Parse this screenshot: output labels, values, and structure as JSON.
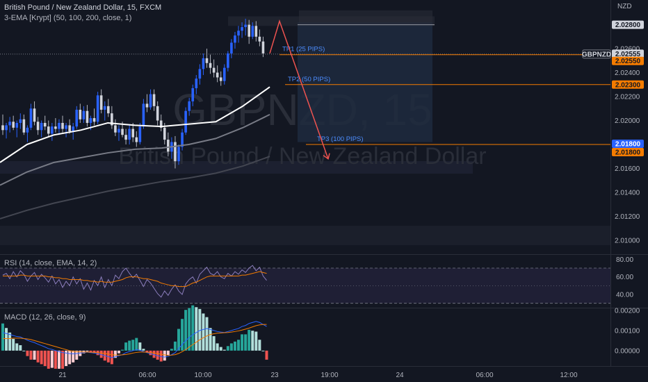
{
  "header": {
    "symbol_title": "British Pound / New Zealand Dollar, 15, FXCM",
    "indicator": "3-EMA [Krypt] (50, 100, 200, close, 1)"
  },
  "watermark": {
    "line1": "GBPNZD, 15",
    "line2": "British Pound / New Zealand Dollar"
  },
  "axis": {
    "currency": "NZD",
    "price_ticks": [
      "2.02800",
      "2.02600",
      "2.02400",
      "2.02200",
      "2.02000",
      "2.01800",
      "2.01600",
      "2.01400",
      "2.01200",
      "2.01000"
    ],
    "price_tick_values": [
      2.028,
      2.026,
      2.024,
      2.022,
      2.02,
      2.018,
      2.016,
      2.014,
      2.012,
      2.01
    ],
    "time_ticks": [
      "21",
      "06:00",
      "10:00",
      "23",
      "19:00",
      "24",
      "06:00",
      "12:00"
    ]
  },
  "badges": [
    {
      "text": "2.02800",
      "value": 2.028,
      "bg": "#d1d4dc",
      "fg": "#131722"
    },
    {
      "text": "GBPNZD",
      "value": 2.02555,
      "bg": "#131722",
      "fg": "#d1d4dc",
      "outlined": true
    },
    {
      "text": "2.02555",
      "value": 2.02555,
      "bg": "#d1d4dc",
      "fg": "#131722"
    },
    {
      "text": "2.02550",
      "value": 2.0255,
      "bg": "#f57c00",
      "fg": "#131722"
    },
    {
      "text": "2.02300",
      "value": 2.023,
      "bg": "#f57c00",
      "fg": "#131722"
    },
    {
      "text": "2.01800",
      "value": 2.018,
      "bg": "#2962ff",
      "fg": "#ffffff"
    },
    {
      "text": "2.01800",
      "value": 2.018,
      "bg": "#f57c00",
      "fg": "#131722"
    }
  ],
  "targets": [
    {
      "label": "TP1 (25 PIPS)",
      "price": 2.0255
    },
    {
      "label": "TP2 (50 PIPS)",
      "price": 2.023
    },
    {
      "label": "TP3 (100 PIPS)",
      "price": 2.018
    }
  ],
  "rsi": {
    "label": "RSI (14, close, EMA, 14, 2)",
    "ticks": [
      "80.00",
      "60.00",
      "40.00"
    ],
    "tick_values": [
      80,
      60,
      40
    ],
    "bands": [
      70,
      30
    ],
    "range": [
      25,
      85
    ],
    "rsi_values": [
      62,
      64,
      58,
      66,
      60,
      67,
      63,
      55,
      61,
      65,
      57,
      63,
      59,
      54,
      61,
      52,
      57,
      48,
      55,
      50,
      60,
      52,
      58,
      46,
      53,
      45,
      56,
      50,
      60,
      48,
      57,
      50,
      62,
      58,
      66,
      70,
      64,
      59,
      63,
      56,
      49,
      57,
      53,
      47,
      41,
      37,
      44,
      39,
      46,
      51,
      44,
      40,
      52,
      57,
      60,
      53,
      63,
      67,
      71,
      64,
      62,
      66,
      60,
      58,
      64,
      61,
      66,
      63,
      68,
      65,
      70,
      73,
      67,
      71,
      61,
      56
    ],
    "ema_values": [
      61,
      61,
      61,
      61,
      61,
      62,
      62,
      61,
      61,
      61,
      61,
      61,
      61,
      60,
      60,
      59,
      59,
      58,
      58,
      57,
      57,
      57,
      57,
      56,
      56,
      55,
      55,
      54,
      55,
      54,
      54,
      54,
      55,
      56,
      57,
      59,
      60,
      60,
      60,
      59,
      58,
      58,
      57,
      56,
      55,
      53,
      52,
      51,
      50,
      50,
      49,
      49,
      49,
      51,
      53,
      54,
      56,
      58,
      60,
      61,
      61,
      61,
      61,
      61,
      61,
      61,
      61,
      61,
      62,
      62,
      63,
      64,
      65,
      66,
      65,
      64
    ],
    "colors": {
      "rsi": "#8c7ebd",
      "ema": "#f57c00",
      "band": "#7e57c2"
    }
  },
  "macd": {
    "label": "MACD (12, 26, close, 9)",
    "ticks": [
      "0.00200",
      "0.00100",
      "0.00000"
    ],
    "tick_values": [
      0.002,
      0.001,
      0
    ],
    "range": [
      -0.0008,
      0.0021
    ],
    "macd_values": [
      0.0009,
      0.00085,
      0.0008,
      0.00075,
      0.0007,
      0.00068,
      0.0006,
      0.00052,
      0.00045,
      0.0004,
      0.00032,
      0.00025,
      0.00018,
      0.0001,
      6e-05,
      0,
      -5e-05,
      -0.0001,
      -0.00012,
      -0.00015,
      -0.00016,
      -0.00015,
      -0.00012,
      -0.0001,
      -8e-05,
      -0.0001,
      -0.00012,
      -0.00015,
      -0.0002,
      -0.00025,
      -0.0003,
      -0.00035,
      -0.0003,
      -0.00025,
      -0.0002,
      -0.0001,
      -5e-05,
      0,
      5e-05,
      2e-05,
      -5e-05,
      -0.0001,
      -0.00015,
      -0.0002,
      -0.00025,
      -0.0003,
      -0.00032,
      -0.00028,
      -0.0002,
      -0.0001,
      0.0001,
      0.0003,
      0.0005,
      0.00065,
      0.0008,
      0.0009,
      0.001,
      0.00105,
      0.0011,
      0.00105,
      0.001,
      0.00095,
      0.00092,
      0.0009,
      0.00095,
      0.001,
      0.00105,
      0.0011,
      0.0012,
      0.00125,
      0.00135,
      0.0014,
      0.00145,
      0.0014,
      0.0013,
      0.0012
    ],
    "signal_values": [
      0.0006,
      0.0006,
      0.0006,
      0.00062,
      0.00062,
      0.00062,
      0.0006,
      0.00058,
      0.00055,
      0.0005,
      0.00045,
      0.0004,
      0.00035,
      0.0003,
      0.00025,
      0.0002,
      0.00015,
      0.0001,
      5e-05,
      0,
      -3e-05,
      -5e-05,
      -6e-05,
      -7e-05,
      -7e-05,
      -8e-05,
      -9e-05,
      -0.0001,
      -0.00012,
      -0.00014,
      -0.00017,
      -0.0002,
      -0.00022,
      -0.00022,
      -0.00021,
      -0.00019,
      -0.00016,
      -0.00012,
      -9e-05,
      -7e-05,
      -7e-05,
      -8e-05,
      -0.0001,
      -0.00012,
      -0.00015,
      -0.00018,
      -0.00021,
      -0.00023,
      -0.00022,
      -0.0002,
      -0.00014,
      -5e-05,
      5e-05,
      0.00018,
      0.0003,
      0.00042,
      0.00054,
      0.00064,
      0.00073,
      0.0008,
      0.00084,
      0.00087,
      0.00088,
      0.00089,
      0.0009,
      0.00092,
      0.00095,
      0.00098,
      0.00102,
      0.00107,
      0.00112,
      0.00118,
      0.00124,
      0.00128,
      0.0013,
      0.0013
    ],
    "colors": {
      "macd": "#2962ff",
      "signal": "#f57c00",
      "pos_strong": "#26a69a",
      "pos_weak": "#b2dfdb",
      "neg_strong": "#ef5350",
      "neg_weak": "#ffcdd2"
    }
  },
  "chart_data": {
    "type": "candlestick",
    "title": "British Pound / New Zealand Dollar, 15, FXCM",
    "ylabel": "NZD",
    "ylim": [
      2.0093,
      2.0296
    ],
    "candles": [
      [
        2.0196,
        2.0205,
        2.0188,
        2.0192
      ],
      [
        2.0192,
        2.0198,
        2.0185,
        2.0196
      ],
      [
        2.0196,
        2.0203,
        2.019,
        2.0199
      ],
      [
        2.0199,
        2.0204,
        2.0192,
        2.0194
      ],
      [
        2.0194,
        2.02,
        2.0186,
        2.0198
      ],
      [
        2.0198,
        2.0206,
        2.0193,
        2.0201
      ],
      [
        2.0201,
        2.0205,
        2.0188,
        2.019
      ],
      [
        2.019,
        2.0196,
        2.0182,
        2.0194
      ],
      [
        2.0194,
        2.0214,
        2.0192,
        2.021
      ],
      [
        2.021,
        2.0216,
        2.0196,
        2.0199
      ],
      [
        2.0199,
        2.0203,
        2.0188,
        2.0192
      ],
      [
        2.0192,
        2.02,
        2.0186,
        2.0198
      ],
      [
        2.0198,
        2.0204,
        2.0192,
        2.0195
      ],
      [
        2.0195,
        2.02,
        2.0186,
        2.0189
      ],
      [
        2.0189,
        2.0198,
        2.0183,
        2.0195
      ],
      [
        2.0195,
        2.0202,
        2.019,
        2.0193
      ],
      [
        2.0193,
        2.0201,
        2.0188,
        2.0198
      ],
      [
        2.0198,
        2.0204,
        2.019,
        2.0193
      ],
      [
        2.0193,
        2.0198,
        2.0186,
        2.0196
      ],
      [
        2.0196,
        2.0201,
        2.0189,
        2.0191
      ],
      [
        2.0191,
        2.0198,
        2.0184,
        2.0195
      ],
      [
        2.0195,
        2.0212,
        2.0193,
        2.0209
      ],
      [
        2.0209,
        2.0214,
        2.0198,
        2.0201
      ],
      [
        2.0201,
        2.0212,
        2.0198,
        2.0208
      ],
      [
        2.0208,
        2.0213,
        2.0195,
        2.0198
      ],
      [
        2.0198,
        2.0204,
        2.0192,
        2.0202
      ],
      [
        2.0202,
        2.021,
        2.0196,
        2.0199
      ],
      [
        2.0199,
        2.0224,
        2.0197,
        2.0221
      ],
      [
        2.0221,
        2.0226,
        2.0206,
        2.0209
      ],
      [
        2.0209,
        2.0216,
        2.02,
        2.0212
      ],
      [
        2.0212,
        2.0218,
        2.0203,
        2.0206
      ],
      [
        2.0206,
        2.0212,
        2.0193,
        2.0196
      ],
      [
        2.0196,
        2.0201,
        2.0187,
        2.019
      ],
      [
        2.019,
        2.0196,
        2.0183,
        2.0193
      ],
      [
        2.0193,
        2.0199,
        2.0186,
        2.0188
      ],
      [
        2.0188,
        2.0193,
        2.018,
        2.0184
      ],
      [
        2.0184,
        2.0197,
        2.018,
        2.0193
      ],
      [
        2.0193,
        2.0198,
        2.0182,
        2.0186
      ],
      [
        2.0186,
        2.0191,
        2.0178,
        2.0182
      ],
      [
        2.0182,
        2.0198,
        2.018,
        2.0195
      ],
      [
        2.0195,
        2.0218,
        2.0193,
        2.0214
      ],
      [
        2.0214,
        2.0222,
        2.0207,
        2.0211
      ],
      [
        2.0211,
        2.0226,
        2.0209,
        2.0222
      ],
      [
        2.0222,
        2.0226,
        2.0208,
        2.0212
      ],
      [
        2.0212,
        2.0216,
        2.0196,
        2.02
      ],
      [
        2.02,
        2.0205,
        2.0191,
        2.0194
      ],
      [
        2.0194,
        2.0198,
        2.018,
        2.0184
      ],
      [
        2.0184,
        2.019,
        2.017,
        2.0174
      ],
      [
        2.0174,
        2.0186,
        2.0168,
        2.0182
      ],
      [
        2.0182,
        2.0187,
        2.016,
        2.0166
      ],
      [
        2.0166,
        2.018,
        2.0163,
        2.0178
      ],
      [
        2.0178,
        2.0193,
        2.0175,
        2.019
      ],
      [
        2.019,
        2.0211,
        2.0188,
        2.0208
      ],
      [
        2.0208,
        2.0219,
        2.0204,
        2.0216
      ],
      [
        2.0216,
        2.023,
        2.0212,
        2.0227
      ],
      [
        2.0227,
        2.0238,
        2.0222,
        2.0235
      ],
      [
        2.0235,
        2.0247,
        2.023,
        2.0243
      ],
      [
        2.0243,
        2.0256,
        2.0238,
        2.0252
      ],
      [
        2.0252,
        2.026,
        2.0244,
        2.0248
      ],
      [
        2.0248,
        2.0255,
        2.0239,
        2.0244
      ],
      [
        2.0244,
        2.0251,
        2.0236,
        2.024
      ],
      [
        2.024,
        2.0246,
        2.0232,
        2.0236
      ],
      [
        2.0236,
        2.0241,
        2.0229,
        2.0233
      ],
      [
        2.0233,
        2.0247,
        2.023,
        2.0244
      ],
      [
        2.0244,
        2.0258,
        2.0241,
        2.0256
      ],
      [
        2.0256,
        2.0268,
        2.0252,
        2.0265
      ],
      [
        2.0265,
        2.0274,
        2.026,
        2.0271
      ],
      [
        2.0271,
        2.0279,
        2.0265,
        2.0275
      ],
      [
        2.0275,
        2.0282,
        2.0269,
        2.0278
      ],
      [
        2.0278,
        2.0285,
        2.0271,
        2.028
      ],
      [
        2.028,
        2.0284,
        2.0264,
        2.027
      ],
      [
        2.027,
        2.0282,
        2.0268,
        2.0279
      ],
      [
        2.0279,
        2.0283,
        2.0266,
        2.027
      ],
      [
        2.027,
        2.0276,
        2.0262,
        2.0266
      ],
      [
        2.0266,
        2.027,
        2.0253,
        2.0256
      ]
    ],
    "ema_series": [
      {
        "name": "EMA 50",
        "color": "#ffffff",
        "values": [
          2.0165,
          2.018,
          2.0188,
          2.0192,
          2.0198,
          2.0196,
          2.0195,
          2.0197,
          2.0199,
          2.0212,
          2.0228
        ]
      },
      {
        "name": "EMA 100",
        "color": "#787b86",
        "values": [
          2.0146,
          2.0157,
          2.0165,
          2.0169,
          2.0173,
          2.0176,
          2.0177,
          2.018,
          2.0185,
          2.0194,
          2.0205
        ]
      },
      {
        "name": "EMA 200",
        "color": "#434651",
        "values": [
          2.0118,
          2.0125,
          2.0131,
          2.0136,
          2.0141,
          2.0145,
          2.0149,
          2.0152,
          2.0156,
          2.0162,
          2.017
        ]
      }
    ],
    "projection": [
      {
        "t": "start",
        "price": 2.0256
      },
      {
        "t": "peak",
        "price": 2.0283
      },
      {
        "t": "end",
        "price": 2.0168
      }
    ]
  }
}
